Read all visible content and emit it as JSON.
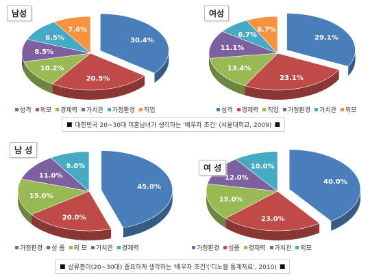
{
  "colors": {
    "blue": "#4a7ebb",
    "red": "#be4b48",
    "green": "#98b954",
    "purple": "#7d60a0",
    "teal": "#46aac4",
    "orange": "#f69240"
  },
  "captions": [
    {
      "marker_left": "■",
      "text": "대한민국 20~30대 미혼남녀가 생각하는 '배우자 조건' (서울대학교, 2009)",
      "marker_right": "■"
    },
    {
      "marker_left": "■",
      "text": "상류층이(20~30대) 중요하게 생각하는 '배우자 조건'('디노블 통계자료', 2010)",
      "marker_right": "■"
    }
  ],
  "chart_data": [
    {
      "type": "pie",
      "gender": "남성",
      "slices": [
        {
          "label": "성격",
          "value": 30.4,
          "value_text": "30.4%",
          "color": "blue",
          "explode": true
        },
        {
          "label": "외모",
          "value": 20.5,
          "value_text": "20.5%",
          "color": "red"
        },
        {
          "label": "경제력",
          "value": 10.2,
          "value_text": "10.2%",
          "color": "green"
        },
        {
          "label": "가치관",
          "value": 8.5,
          "value_text": "8.5%",
          "color": "purple"
        },
        {
          "label": "가정환경",
          "value": 8.5,
          "value_text": "8.5%",
          "color": "teal"
        },
        {
          "label": "직업",
          "value": 7.6,
          "value_text": "7.6%",
          "color": "orange"
        }
      ]
    },
    {
      "type": "pie",
      "gender": "여성",
      "slices": [
        {
          "label": "성격",
          "value": 29.1,
          "value_text": "29.1%",
          "color": "blue",
          "explode": true
        },
        {
          "label": "경제력",
          "value": 23.1,
          "value_text": "23.1%",
          "color": "red"
        },
        {
          "label": "직업",
          "value": 13.4,
          "value_text": "13.4%",
          "color": "green"
        },
        {
          "label": "가정환경",
          "value": 11.1,
          "value_text": "11.1%",
          "color": "purple"
        },
        {
          "label": "가치관",
          "value": 6.7,
          "value_text": "6.7%",
          "color": "teal"
        },
        {
          "label": "외모",
          "value": 6.7,
          "value_text": "6.7%",
          "color": "orange"
        }
      ]
    },
    {
      "type": "pie",
      "gender": "남 성",
      "slices": [
        {
          "label": "가정환경",
          "value": 45.0,
          "value_text": "45.0%",
          "color": "blue",
          "explode": true
        },
        {
          "label": "성 품",
          "value": 20.0,
          "value_text": "20.0%",
          "color": "red"
        },
        {
          "label": "외 모",
          "value": 15.0,
          "value_text": "15.0%",
          "color": "green"
        },
        {
          "label": "가치관",
          "value": 11.0,
          "value_text": "11.0%",
          "color": "purple"
        },
        {
          "label": "경제력",
          "value": 9.0,
          "value_text": "9.0%",
          "color": "teal"
        }
      ]
    },
    {
      "type": "pie",
      "gender": "여 성",
      "slices": [
        {
          "label": "가정환경",
          "value": 40.0,
          "value_text": "40.0%",
          "color": "blue",
          "explode": true
        },
        {
          "label": "성품",
          "value": 23.0,
          "value_text": "23.0%",
          "color": "red"
        },
        {
          "label": "경제력",
          "value": 15.0,
          "value_text": "15.0%",
          "color": "green"
        },
        {
          "label": "가치관",
          "value": 12.0,
          "value_text": "12.0%",
          "color": "purple"
        },
        {
          "label": "외모",
          "value": 10.0,
          "value_text": "10.0%",
          "color": "teal"
        }
      ]
    }
  ]
}
